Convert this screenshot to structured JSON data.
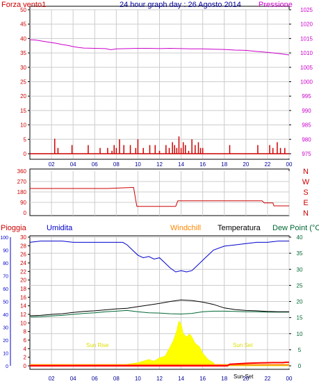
{
  "header": {
    "title": "24 hour graph day : 26 Agosto 2014",
    "left_label": "Forza vento1",
    "right_label": "Pressione"
  },
  "legend_bottom": {
    "pioggia": "Pioggia",
    "umidita": "Umidita",
    "windchill": "Windchill",
    "temperatura": "Temperatura",
    "dewpoint": "Dew Point (°C"
  },
  "annotations": {
    "sunrise": "Sun Rise",
    "sunset": "Sun Set",
    "sunset_dup": "Sun Set"
  },
  "colors": {
    "frame": "#000000",
    "red_axis": "#cc0000",
    "pressure": "#cc00cc",
    "title": "#000099",
    "humidity": "#0000cc",
    "temperature": "#000000",
    "dewpoint": "#006633",
    "rain": "#ffff00",
    "rain_red": "#ff0000",
    "windchill": "#ff8800",
    "grid": "#cccccc",
    "sun_text": "#dddd00"
  },
  "chart_data": [
    {
      "type": "line",
      "title": "24 hour graph day : 26 Agosto 2014",
      "x_ticks": [
        "02",
        "04",
        "06",
        "08",
        "10",
        "12",
        "14",
        "16",
        "18",
        "20",
        "22",
        "00"
      ],
      "left_axis": {
        "label": "Forza vento1",
        "ticks": [
          0,
          5,
          10,
          15,
          20,
          25,
          30,
          35,
          40,
          45,
          50
        ],
        "ylim": [
          0,
          50
        ]
      },
      "right_axis": {
        "label": "Pressione",
        "ticks": [
          975,
          980,
          985,
          990,
          995,
          1000,
          1005,
          1010,
          1015,
          1020,
          1025
        ],
        "ylim": [
          975,
          1025
        ]
      },
      "series": [
        {
          "name": "Pressione",
          "axis": "right",
          "x": [
            0,
            0.5,
            1,
            1.5,
            2,
            2.5,
            3,
            3.5,
            4,
            4.5,
            5,
            6,
            7,
            7.5,
            8,
            9,
            10,
            11,
            12,
            13,
            14,
            15,
            16,
            17,
            18,
            19,
            20,
            21,
            22,
            23,
            24
          ],
          "values": [
            1014.6,
            1014.5,
            1014.2,
            1013.9,
            1013.6,
            1013.3,
            1012.9,
            1012.6,
            1012.2,
            1011.9,
            1011.7,
            1011.6,
            1011.5,
            1011.1,
            1011.4,
            1011.5,
            1011.6,
            1011.6,
            1011.5,
            1011.6,
            1011.5,
            1011.4,
            1011.4,
            1011.3,
            1011.2,
            1011.0,
            1010.9,
            1010.5,
            1010.2,
            1009.8,
            1009.3
          ]
        },
        {
          "name": "Forza vento1",
          "axis": "left",
          "style": "impulse",
          "x": [
            2.3,
            2.6,
            3.9,
            5.4,
            6.5,
            7.2,
            7.6,
            7.8,
            8.0,
            8.3,
            8.7,
            9.3,
            9.8,
            10.0,
            10.5,
            11.1,
            11.6,
            12.0,
            12.6,
            12.9,
            13.2,
            13.4,
            13.6,
            13.8,
            14.0,
            14.2,
            14.4,
            14.7,
            15.0,
            15.3,
            15.6,
            15.8,
            16.0,
            18.5,
            21.1,
            22.2,
            22.5,
            22.9,
            23.2,
            23.6
          ],
          "values": [
            5.2,
            2,
            3,
            3,
            2,
            2,
            1,
            3,
            2,
            5,
            3,
            3,
            2,
            5,
            2,
            3,
            3,
            1,
            3,
            2,
            4,
            3,
            2,
            6,
            2,
            4,
            3,
            1,
            5,
            3,
            4,
            2,
            2,
            3,
            3,
            3,
            2,
            4,
            2,
            2
          ]
        }
      ]
    },
    {
      "type": "line",
      "left_axis": {
        "ticks": [
          0,
          90,
          180,
          270,
          360
        ],
        "ylim": [
          0,
          360
        ]
      },
      "right_axis": {
        "ticks": [
          "N",
          "W",
          "S",
          "E",
          "N"
        ]
      },
      "series": [
        {
          "name": "Direzione vento",
          "x": [
            0,
            7.2,
            9.5,
            9.6,
            9.9,
            13.5,
            13.7,
            21.5,
            21.7,
            22.5,
            22.6,
            24
          ],
          "values": [
            210,
            210,
            219,
            219,
            55,
            55,
            104,
            104,
            86,
            86,
            60,
            60
          ]
        }
      ]
    },
    {
      "type": "line",
      "left_axis": {
        "label": "Umidita",
        "ticks": [
          0,
          10,
          20,
          30,
          40,
          50,
          60,
          70,
          80,
          90,
          100
        ],
        "ylim": [
          0,
          100
        ]
      },
      "left_axis_2": {
        "label": "Pioggia",
        "ticks": [
          0,
          2,
          4,
          6,
          8,
          10,
          12,
          14,
          16,
          18,
          20,
          22,
          24,
          26,
          28,
          30
        ],
        "ylim": [
          0,
          30
        ]
      },
      "right_axis": {
        "ticks": [
          0,
          5,
          10,
          15,
          20,
          25,
          30,
          35,
          40
        ],
        "ylim": [
          0,
          40
        ]
      },
      "series": [
        {
          "name": "Umidita",
          "axis": "left",
          "x": [
            0,
            1,
            2,
            3,
            4,
            5,
            6,
            7,
            8,
            8.6,
            9,
            9.5,
            10,
            10.5,
            11,
            11.5,
            12,
            12.5,
            13,
            13.5,
            14,
            14.5,
            15,
            15.5,
            16,
            16.5,
            17,
            18,
            19,
            20,
            21,
            22,
            23,
            24
          ],
          "values": [
            96,
            97,
            97,
            97,
            96,
            96,
            96,
            96,
            96,
            96,
            94,
            90,
            86,
            84,
            85,
            83,
            84,
            80,
            76,
            73,
            74,
            73,
            74,
            78,
            82,
            86,
            90,
            93,
            94,
            95,
            96,
            96,
            97,
            97
          ]
        },
        {
          "name": "Temperatura",
          "axis": "right",
          "x": [
            0,
            1,
            2,
            3,
            4,
            5,
            6,
            7,
            8,
            9,
            10,
            11,
            12,
            13,
            14,
            15,
            16,
            17,
            18,
            19,
            20,
            21,
            22,
            23,
            24
          ],
          "values": [
            15.6,
            15.7,
            16.0,
            16.2,
            16.6,
            16.9,
            17.1,
            17.4,
            17.7,
            17.9,
            18.4,
            18.9,
            19.4,
            20.0,
            20.5,
            20.3,
            19.8,
            19.1,
            18.0,
            17.5,
            17.2,
            17.1,
            16.9,
            16.8,
            16.8
          ]
        },
        {
          "name": "Dew Point (°C",
          "axis": "right",
          "x": [
            0,
            1,
            2,
            3,
            4,
            5,
            6,
            7,
            8,
            9,
            10,
            11,
            12,
            13,
            14,
            15,
            16,
            17,
            18,
            19,
            20,
            21,
            22,
            23,
            24
          ],
          "values": [
            15.2,
            15.3,
            15.5,
            15.7,
            16.0,
            16.3,
            16.5,
            16.8,
            17.0,
            17.2,
            16.8,
            16.5,
            16.4,
            16.2,
            16.1,
            16.3,
            16.8,
            17.0,
            17.0,
            16.9,
            16.8,
            16.8,
            16.7,
            16.7,
            16.7
          ]
        },
        {
          "name": "Pioggia",
          "axis": "right",
          "style": "area",
          "x": [
            0,
            5,
            6.4,
            6.5,
            6.6,
            8.3,
            9,
            10,
            10.5,
            11,
            11.5,
            12,
            12.5,
            13,
            13.3,
            13.6,
            13.8,
            14.0,
            14.2,
            14.5,
            14.8,
            15.0,
            15.3,
            15.7,
            16,
            16.5,
            17,
            17.2,
            18,
            24
          ],
          "values": [
            0,
            0,
            0,
            0.5,
            0,
            0,
            0.5,
            1,
            1.5,
            2,
            1.5,
            2.5,
            3,
            6,
            8,
            11,
            14,
            13,
            10,
            9,
            10,
            9,
            7,
            6,
            4,
            2,
            1,
            0,
            0,
            0
          ]
        },
        {
          "name": "Windchill",
          "axis": "right",
          "x": [
            0,
            24
          ],
          "values": [
            0.3,
            0.3
          ]
        },
        {
          "name": "Pioggia cumulata",
          "axis": "right",
          "x": [
            0,
            18.3,
            18.5,
            20.2,
            21.3,
            22.5,
            23.5,
            23.6,
            24
          ],
          "values": [
            0,
            0,
            0.5,
            0.8,
            0.9,
            1.0,
            1.0,
            1.1,
            1.1
          ]
        }
      ]
    }
  ]
}
